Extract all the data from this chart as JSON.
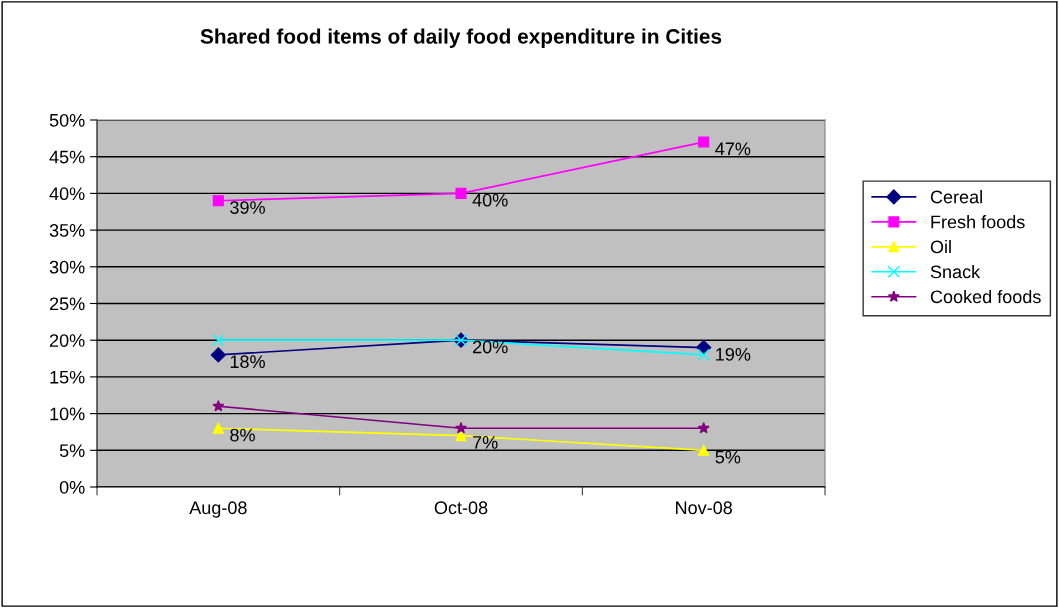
{
  "chart_data": {
    "type": "line",
    "title": "Shared food items of daily food expenditure in Cities",
    "categories": [
      "Aug-08",
      "Oct-08",
      "Nov-08"
    ],
    "series": [
      {
        "name": "Cereal",
        "color": "#000080",
        "marker": "diamond",
        "values": [
          18,
          20,
          19
        ],
        "value_labels": [
          "18%",
          "20%",
          "19%"
        ]
      },
      {
        "name": "Fresh foods",
        "color": "#ff00ff",
        "marker": "square",
        "values": [
          39,
          40,
          47
        ],
        "value_labels": [
          "39%",
          "40%",
          "47%"
        ]
      },
      {
        "name": "Oil",
        "color": "#ffff00",
        "marker": "triangle",
        "values": [
          8,
          7,
          5
        ],
        "value_labels": [
          "8%",
          "7%",
          "5%"
        ]
      },
      {
        "name": "Snack",
        "color": "#00ffff",
        "marker": "cross",
        "values": [
          20,
          20,
          18
        ]
      },
      {
        "name": "Cooked foods",
        "color": "#800080",
        "marker": "star",
        "values": [
          11,
          8,
          8
        ]
      }
    ],
    "ylim": [
      0,
      50
    ],
    "yticks": [
      {
        "value": 0,
        "label": "0%"
      },
      {
        "value": 5,
        "label": "5%"
      },
      {
        "value": 10,
        "label": "10%"
      },
      {
        "value": 15,
        "label": "15%"
      },
      {
        "value": 20,
        "label": "20%"
      },
      {
        "value": 25,
        "label": "25%"
      },
      {
        "value": 30,
        "label": "30%"
      },
      {
        "value": 35,
        "label": "35%"
      },
      {
        "value": 40,
        "label": "40%"
      },
      {
        "value": 45,
        "label": "45%"
      },
      {
        "value": 50,
        "label": "50%"
      }
    ],
    "grid": "y",
    "legend": "right",
    "line_style": "solid"
  }
}
